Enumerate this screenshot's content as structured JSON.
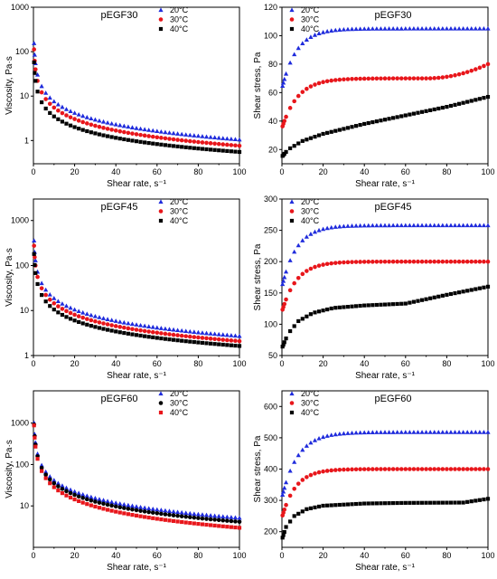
{
  "colors": {
    "blue": "#1f2bdc",
    "red": "#e8161b",
    "black": "#000000"
  },
  "chart_data": [
    {
      "type": "scatter",
      "title": "pEGF30",
      "xlabel": "Shear rate, s⁻¹",
      "ylabel": "Viscosity, Pa·s",
      "xlim": [
        0,
        100
      ],
      "ylim": [
        0.3,
        1000
      ],
      "yscale": "log",
      "legend_position": "top-right",
      "grid": false,
      "xticks": [
        "0",
        "20",
        "40",
        "60",
        "80",
        "100"
      ],
      "yticks": [
        "1",
        "10",
        "100",
        "1000"
      ],
      "series": [
        {
          "name": "20°C",
          "marker": "triangle",
          "color": "blue",
          "model": {
            "kind": "power",
            "a": 55,
            "b": 0.86
          },
          "x": [
            0.3,
            0.6,
            1.0
          ]
        },
        {
          "name": "30°C",
          "marker": "circle",
          "color": "red",
          "model": {
            "kind": "power",
            "a": 40,
            "b": 0.86
          },
          "x": [
            0.3,
            0.6,
            1.0
          ]
        },
        {
          "name": "40°C",
          "marker": "square",
          "color": "black",
          "model": {
            "kind": "power",
            "a": 22,
            "b": 0.8
          },
          "x": [
            0.3,
            0.6,
            1.0
          ]
        }
      ]
    },
    {
      "type": "scatter",
      "title": "pEGF30",
      "xlabel": "Shear rate, s⁻¹",
      "ylabel": "Shear stress, Pa",
      "xlim": [
        0,
        100
      ],
      "ylim": [
        10,
        120
      ],
      "yscale": "linear",
      "legend_position": "top-left",
      "grid": false,
      "xticks": [
        "0",
        "20",
        "40",
        "60",
        "80",
        "100"
      ],
      "yticks": [
        "20",
        "40",
        "60",
        "80",
        "100",
        "120"
      ],
      "series": [
        {
          "name": "20°C",
          "marker": "triangle",
          "color": "blue",
          "model": {
            "kind": "plateau",
            "start": 63,
            "plateau": 105,
            "k": 0.14,
            "late_rise": 0
          }
        },
        {
          "name": "30°C",
          "marker": "circle",
          "color": "red",
          "model": {
            "kind": "plateau",
            "start": 35,
            "plateau": 70,
            "k": 0.13,
            "late_rise": 10
          }
        },
        {
          "name": "40°C",
          "marker": "square",
          "color": "black",
          "model": {
            "kind": "curve",
            "x": [
              0,
              3,
              10,
              20,
              40,
              60,
              80,
              100
            ],
            "y": [
              15,
              20,
              26,
              31,
              38,
              44,
              50,
              57
            ]
          }
        }
      ]
    },
    {
      "type": "scatter",
      "title": "pEGF45",
      "xlabel": "Shear rate, s⁻¹",
      "ylabel": "Viscosity, Pa·s",
      "xlim": [
        0,
        100
      ],
      "ylim": [
        1,
        3000
      ],
      "yscale": "log",
      "legend_position": "top-right",
      "grid": false,
      "xticks": [
        "0",
        "20",
        "40",
        "60",
        "80",
        "100"
      ],
      "yticks": [
        "1",
        "10",
        "100",
        "1000"
      ],
      "series": [
        {
          "name": "20°C",
          "marker": "triangle",
          "color": "blue",
          "model": {
            "kind": "power",
            "a": 130,
            "b": 0.84
          },
          "x": [
            0.3,
            0.6,
            1.0
          ]
        },
        {
          "name": "30°C",
          "marker": "circle",
          "color": "red",
          "model": {
            "kind": "power",
            "a": 100,
            "b": 0.84
          },
          "x": [
            0.3,
            0.6,
            1.0
          ]
        },
        {
          "name": "40°C",
          "marker": "square",
          "color": "black",
          "model": {
            "kind": "power",
            "a": 68,
            "b": 0.81
          },
          "x": [
            0.3,
            0.6,
            1.0
          ]
        }
      ]
    },
    {
      "type": "scatter",
      "title": "pEGF45",
      "xlabel": "Shear rate, s⁻¹",
      "ylabel": "Shear stress, Pa",
      "xlim": [
        0,
        100
      ],
      "ylim": [
        50,
        300
      ],
      "yscale": "linear",
      "legend_position": "top-left",
      "grid": false,
      "xticks": [
        "0",
        "20",
        "40",
        "60",
        "80",
        "100"
      ],
      "yticks": [
        "50",
        "100",
        "150",
        "200",
        "250",
        "300"
      ],
      "series": [
        {
          "name": "20°C",
          "marker": "triangle",
          "color": "blue",
          "model": {
            "kind": "plateau",
            "start": 160,
            "plateau": 258,
            "k": 0.14,
            "late_rise": 0
          }
        },
        {
          "name": "30°C",
          "marker": "circle",
          "color": "red",
          "model": {
            "kind": "plateau",
            "start": 120,
            "plateau": 200,
            "k": 0.14,
            "late_rise": 0
          }
        },
        {
          "name": "40°C",
          "marker": "square",
          "color": "black",
          "model": {
            "kind": "curve",
            "x": [
              0,
              3,
              8,
              15,
              25,
              40,
              60,
              80,
              100
            ],
            "y": [
              62,
              85,
              105,
              118,
              126,
              130,
              133,
              147,
              160
            ]
          }
        }
      ]
    },
    {
      "type": "scatter",
      "title": "pEGF60",
      "xlabel": "Shear rate, s⁻¹",
      "ylabel": "Viscosity, Pa·s",
      "xlim": [
        0,
        100
      ],
      "ylim": [
        1,
        6000
      ],
      "yscale": "log",
      "legend_position": "top-right",
      "grid": false,
      "xticks": [
        "0",
        "20",
        "40",
        "60",
        "80",
        "100"
      ],
      "yticks": [
        "10",
        "100",
        "1000"
      ],
      "series": [
        {
          "name": "20°C",
          "marker": "triangle",
          "color": "blue",
          "model": {
            "kind": "power",
            "a": 340,
            "b": 0.91
          },
          "x": [
            0.3,
            0.6,
            1.0
          ]
        },
        {
          "name": "30°C",
          "marker": "circle",
          "color": "black",
          "model": {
            "kind": "power",
            "a": 300,
            "b": 0.93
          },
          "x": [
            0.3,
            0.6,
            1.0
          ]
        },
        {
          "name": "40°C",
          "marker": "square",
          "color": "red",
          "model": {
            "kind": "power",
            "a": 270,
            "b": 0.98
          },
          "x": [
            0.3,
            0.6,
            1.0
          ]
        }
      ]
    },
    {
      "type": "scatter",
      "title": "pEGF60",
      "xlabel": "Shear rate, s⁻¹",
      "ylabel": "Shear stress, Pa",
      "xlim": [
        0,
        100
      ],
      "ylim": [
        150,
        650
      ],
      "yscale": "linear",
      "legend_position": "top-left",
      "grid": false,
      "xticks": [
        "0",
        "20",
        "40",
        "60",
        "80",
        "100"
      ],
      "yticks": [
        "200",
        "300",
        "400",
        "500",
        "600"
      ],
      "series": [
        {
          "name": "20°C",
          "marker": "triangle",
          "color": "blue",
          "model": {
            "kind": "plateau",
            "start": 310,
            "plateau": 518,
            "k": 0.13,
            "late_rise": 0
          }
        },
        {
          "name": "30°C",
          "marker": "circle",
          "color": "red",
          "model": {
            "kind": "plateau",
            "start": 245,
            "plateau": 400,
            "k": 0.15,
            "late_rise": 0
          }
        },
        {
          "name": "40°C",
          "marker": "square",
          "color": "black",
          "model": {
            "kind": "curve",
            "x": [
              0,
              2,
              6,
              12,
              20,
              40,
              60,
              88,
              100
            ],
            "y": [
              175,
              215,
              250,
              272,
              283,
              290,
              292,
              293,
              305
            ]
          }
        }
      ]
    }
  ]
}
